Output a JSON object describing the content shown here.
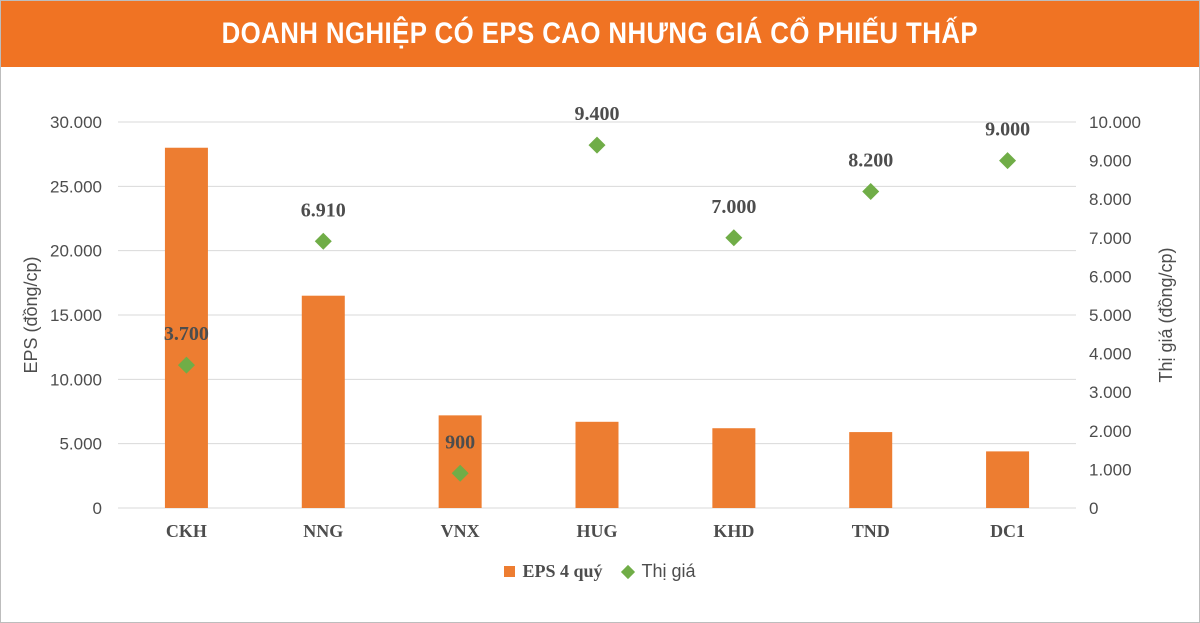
{
  "header": {
    "title": "DOANH NGHIỆP CÓ EPS CAO NHƯNG GIÁ CỔ PHIẾU THẤP"
  },
  "colors": {
    "title_bg": "#f07323",
    "bar": "#ed7d31",
    "marker": "#70ad47",
    "gridline": "#d9d9d9",
    "text": "#4d4d4d"
  },
  "chart_data": {
    "type": "bar",
    "title": "DOANH NGHIỆP CÓ EPS CAO NHƯNG GIÁ CỔ PHIẾU THẤP",
    "categories": [
      "CKH",
      "NNG",
      "VNX",
      "HUG",
      "KHD",
      "TND",
      "DC1"
    ],
    "series": [
      {
        "name": "EPS 4 quý",
        "type": "bar",
        "axis": "left",
        "values": [
          28000,
          16500,
          7200,
          6700,
          6200,
          5900,
          4400
        ]
      },
      {
        "name": "Thị giá",
        "type": "scatter",
        "axis": "right",
        "values": [
          3700,
          6910,
          900,
          9400,
          7000,
          8200,
          9000
        ],
        "labels": [
          "3.700",
          "6.910",
          "900",
          "9.400",
          "7.000",
          "8.200",
          "9.000"
        ]
      }
    ],
    "ylabel": "EPS (đồng/cp)",
    "ylabel_right": "Thị giá (đồng/cp)",
    "ylim": [
      0,
      30000
    ],
    "ylim_right": [
      0,
      10000
    ],
    "yticks": [
      "0",
      "5.000",
      "10.000",
      "15.000",
      "20.000",
      "25.000",
      "30.000"
    ],
    "yticks_right": [
      "0",
      "1.000",
      "2.000",
      "3.000",
      "4.000",
      "5.000",
      "6.000",
      "7.000",
      "8.000",
      "9.000",
      "10.000"
    ],
    "grid": true,
    "legend": "bottom"
  }
}
